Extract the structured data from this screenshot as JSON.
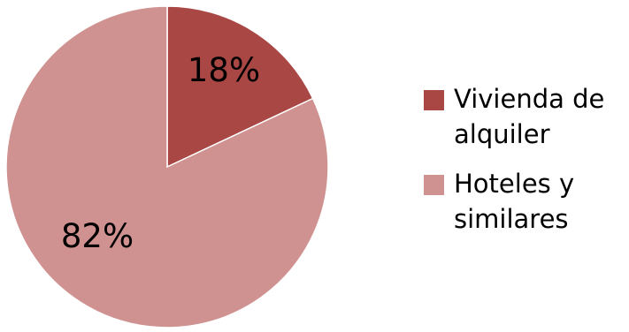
{
  "chart_data": {
    "type": "pie",
    "title": "",
    "categories": [
      "Vivienda de alquiler",
      "Hoteles y similares"
    ],
    "values": [
      18,
      82
    ],
    "labels": [
      "18%",
      "82%"
    ],
    "colors": [
      "#A94745",
      "#D09291"
    ],
    "start_angle": "12 o'clock",
    "direction": "clockwise",
    "legend": "right",
    "legend_entries": [
      {
        "label_line1": "Vivienda de",
        "label_line2": "alquiler",
        "color": "#A94745"
      },
      {
        "label_line1": "Hoteles y",
        "label_line2": "similares",
        "color": "#D09291"
      }
    ]
  }
}
